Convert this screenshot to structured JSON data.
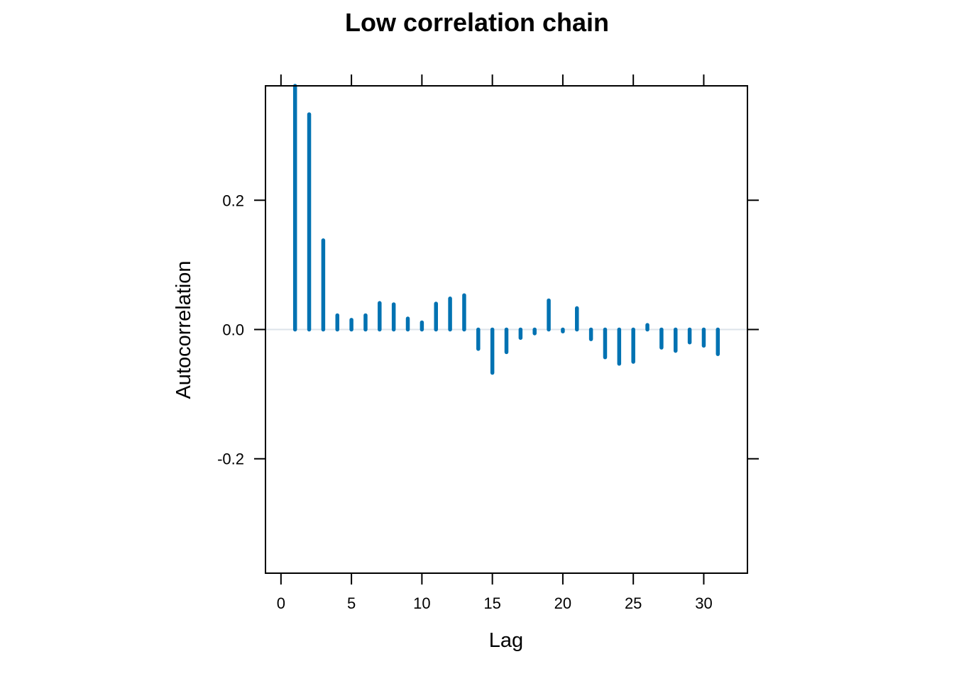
{
  "chart_data": {
    "type": "bar",
    "title": "Low correlation chain",
    "xlabel": "Lag",
    "ylabel": "Autocorrelation",
    "xlim": [
      -1.1,
      33.1
    ],
    "ylim": [
      -0.377,
      0.377
    ],
    "x_ticks": [
      0,
      5,
      10,
      15,
      20,
      25,
      30
    ],
    "x_tick_labels": [
      "0",
      "5",
      "10",
      "15",
      "20",
      "25",
      "30"
    ],
    "y_ticks": [
      -0.2,
      0.0,
      0.2
    ],
    "y_tick_labels": [
      "-0.2",
      "0.0",
      "0.2"
    ],
    "reference_line": 0.0,
    "grid": false,
    "bar_color": "#0072b2",
    "ref_line_color": "#dde3ea",
    "series": [
      {
        "x": [
          1,
          2,
          3,
          4,
          5,
          6,
          7,
          8,
          9,
          10,
          11,
          12,
          13,
          14,
          15,
          16,
          17,
          18,
          19,
          20,
          21,
          22,
          23,
          24,
          25,
          26,
          27,
          28,
          29,
          30,
          31
        ],
        "values": [
          0.377,
          0.333,
          0.138,
          0.022,
          0.015,
          0.022,
          0.041,
          0.039,
          0.017,
          0.011,
          0.04,
          0.048,
          0.053,
          -0.03,
          -0.067,
          -0.035,
          -0.013,
          -0.006,
          0.045,
          -0.003,
          0.033,
          -0.015,
          -0.043,
          -0.053,
          -0.05,
          0.007,
          -0.028,
          -0.033,
          -0.02,
          -0.025,
          -0.038
        ]
      }
    ]
  }
}
